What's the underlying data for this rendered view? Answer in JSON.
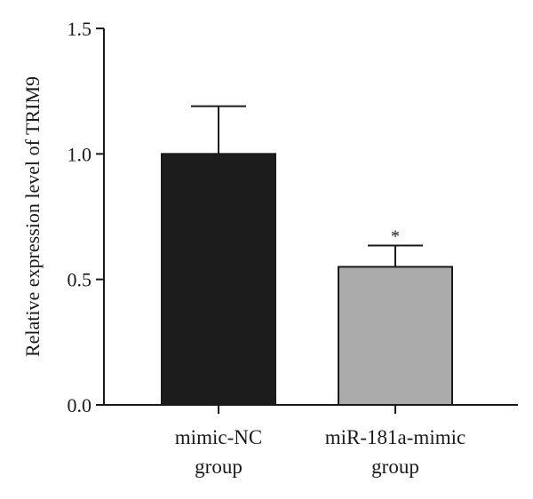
{
  "chart_data": {
    "type": "bar",
    "ylabel": "Relative expression level of TRIM9",
    "xlabel": "",
    "ylim": [
      0,
      1.5
    ],
    "yticks": [
      "0.0",
      "0.5",
      "1.0",
      "1.5"
    ],
    "categories": [
      [
        "mimic-NC",
        "group"
      ],
      [
        "miR-181a-mimic",
        "group"
      ]
    ],
    "values": [
      1.0,
      0.55
    ],
    "errors": [
      0.19,
      0.085
    ],
    "significance": [
      "",
      "*"
    ],
    "colors": [
      "#1c1c1c",
      "#ababab"
    ]
  }
}
